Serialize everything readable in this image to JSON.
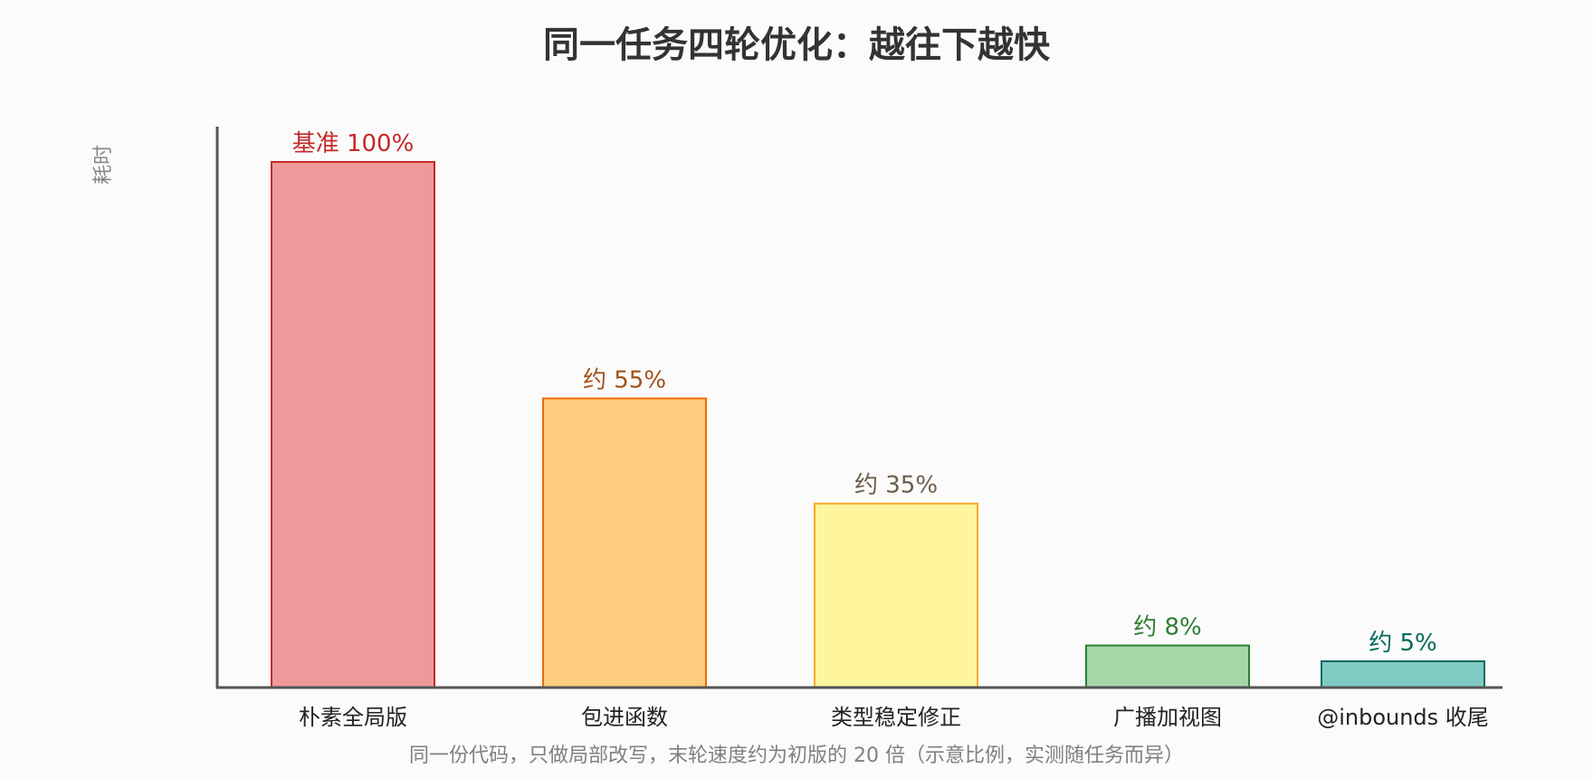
{
  "chart_data": {
    "type": "bar",
    "title": "同一任务四轮优化：越往下越快",
    "ylabel": "耗时",
    "xlabel": "",
    "footnote": "同一份代码，只做局部改写，末轮速度约为初版的 20 倍（示意比例，实测随任务而异）",
    "ylim": [
      0,
      100
    ],
    "grid": false,
    "legend": "none",
    "categories": [
      "朴素全局版",
      "包进函数",
      "类型稳定修正",
      "广播加视图",
      "@inbounds 收尾"
    ],
    "values": [
      100,
      55,
      35,
      8,
      5
    ],
    "data_labels": [
      "基准 100%",
      "约 55%",
      "约 35%",
      "约 8%",
      "约 5%"
    ],
    "colors": {
      "fill": [
        "#ef9a9a",
        "#ffcc80",
        "#fff59d",
        "#a5d6a7",
        "#80cbc4"
      ],
      "stroke": [
        "#c62828",
        "#ef6c00",
        "#f9a825",
        "#2e7d32",
        "#00695c"
      ],
      "label": [
        "#c62828",
        "#a0521a",
        "#6d5d4b",
        "#2e7d32",
        "#00695c"
      ],
      "axis": "#555555",
      "title": "#333333",
      "category_text": "#222222",
      "ylabel": "#888888",
      "footnote": "#808080"
    }
  }
}
